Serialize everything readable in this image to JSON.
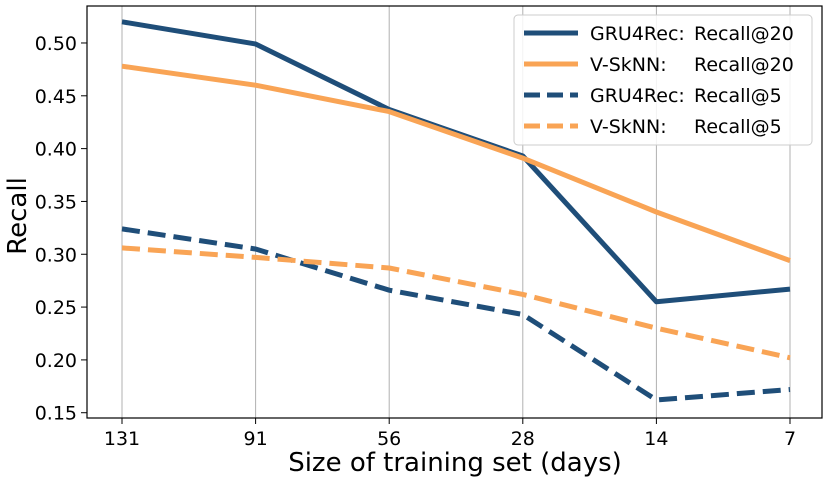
{
  "chart_data": {
    "type": "line",
    "title": "",
    "xlabel": "Size of training set (days)",
    "ylabel": "Recall",
    "categories": [
      "131",
      "91",
      "56",
      "28",
      "14",
      "7"
    ],
    "ylim": [
      0.145,
      0.535
    ],
    "yticks": [
      0.15,
      0.2,
      0.25,
      0.3,
      0.35,
      0.4,
      0.45,
      0.5
    ],
    "ytick_labels": [
      "0.15",
      "0.20",
      "0.25",
      "0.30",
      "0.35",
      "0.40",
      "0.45",
      "0.50"
    ],
    "grid": "vertical",
    "legend_position": "top-right",
    "series": [
      {
        "name": "GRU4Rec: Recall@20",
        "legend_model": "GRU4Rec:",
        "legend_metric": "Recall@20",
        "color": "#1f4e79",
        "style": "solid",
        "values": [
          0.52,
          0.499,
          0.437,
          0.393,
          0.255,
          0.267
        ]
      },
      {
        "name": "V-SkNN: Recall@20",
        "legend_model": "V-SkNN:",
        "legend_metric": "Recall@20",
        "color": "#f9a455",
        "style": "solid",
        "values": [
          0.478,
          0.46,
          0.435,
          0.391,
          0.34,
          0.294
        ]
      },
      {
        "name": "GRU4Rec: Recall@5",
        "legend_model": "GRU4Rec:",
        "legend_metric": "Recall@5",
        "color": "#1f4e79",
        "style": "dashed",
        "values": [
          0.324,
          0.305,
          0.266,
          0.243,
          0.162,
          0.172
        ]
      },
      {
        "name": "V-SkNN: Recall@5",
        "legend_model": "V-SkNN:",
        "legend_metric": "Recall@5",
        "color": "#f9a455",
        "style": "dashed",
        "values": [
          0.306,
          0.297,
          0.287,
          0.262,
          0.23,
          0.202
        ]
      }
    ]
  }
}
